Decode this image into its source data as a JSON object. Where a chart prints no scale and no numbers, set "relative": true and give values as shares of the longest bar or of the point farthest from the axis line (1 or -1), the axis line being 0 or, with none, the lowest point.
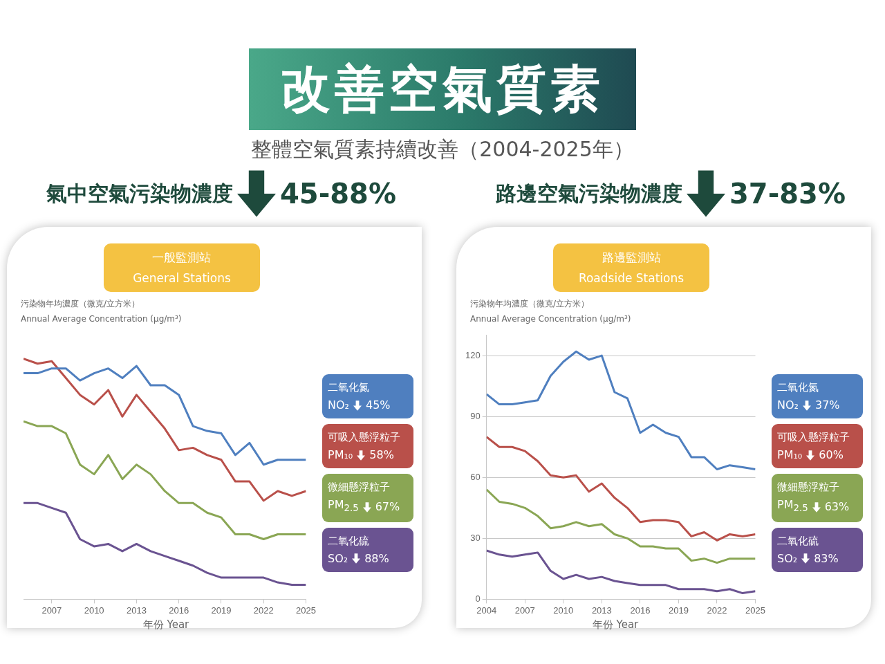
{
  "chart_data": [
    {
      "type": "line",
      "title": "一般監測站\nGeneral Stations",
      "subtitle": "氣中空氣污染物濃度 45-88%",
      "annotations": [
        "改善空氣質素",
        "整體空氣質素持續改善（2004-2025年）"
      ],
      "xlabel": "年份 Year",
      "ylabel": "污染物年均濃度（微克/立方米）\nAnnual Average Concentration (μg/m³)",
      "relative": true,
      "marker": "none",
      "x": [
        2005,
        2006,
        2007,
        2008,
        2009,
        2010,
        2011,
        2012,
        2013,
        2014,
        2015,
        2016,
        2017,
        2018,
        2019,
        2020,
        2021,
        2022,
        2023,
        2024,
        2025
      ],
      "xlim": [
        2005,
        2025
      ],
      "xticks": [
        2007,
        2010,
        2013,
        2016,
        2019,
        2022,
        2025
      ],
      "series": [
        {
          "name": "二氧化氮\nNO₂ 45%",
          "color": "#4f7fbf",
          "values": [
            0.94,
            0.94,
            0.96,
            0.96,
            0.91,
            0.94,
            0.96,
            0.92,
            0.97,
            0.89,
            0.89,
            0.85,
            0.72,
            0.7,
            0.69,
            0.6,
            0.65,
            0.56,
            0.58,
            0.58,
            0.58
          ]
        },
        {
          "name": "可吸入懸浮粒子\nPM₁₀ 58%",
          "color": "#b9504a",
          "values": [
            1,
            0.98,
            0.99,
            0.92,
            0.85,
            0.81,
            0.87,
            0.76,
            0.85,
            0.78,
            0.71,
            0.62,
            0.63,
            0.6,
            0.58,
            0.49,
            0.49,
            0.41,
            0.45,
            0.43,
            0.45
          ]
        },
        {
          "name": "微細懸浮粒子\nPM$_{2.5}$ 67%",
          "color": "#8aa654",
          "values": [
            0.74,
            0.72,
            0.72,
            0.69,
            0.56,
            0.52,
            0.6,
            0.5,
            0.56,
            0.52,
            0.45,
            0.4,
            0.4,
            0.36,
            0.34,
            0.27,
            0.27,
            0.25,
            0.27,
            0.27,
            0.27
          ]
        },
        {
          "name": "二氧化硫\nSO₂ 88%",
          "color": "#6a5391",
          "values": [
            0.4,
            0.4,
            0.38,
            0.36,
            0.25,
            0.22,
            0.23,
            0.2,
            0.23,
            0.2,
            0.18,
            0.16,
            0.14,
            0.11,
            0.09,
            0.09,
            0.09,
            0.09,
            0.07,
            0.06,
            0.06
          ]
        }
      ]
    },
    {
      "type": "line",
      "title": "路邊監測站\nRoadside Stations",
      "subtitle": "路邊空氣污染物濃度 37-83%",
      "xlabel": "年份 Year",
      "ylabel": "污染物年均濃度（微克/立方米）\nAnnual Average Concentration (μg/m³)",
      "marker": "none",
      "grid": "y",
      "x": [
        2004,
        2005,
        2006,
        2007,
        2008,
        2009,
        2010,
        2011,
        2012,
        2013,
        2014,
        2015,
        2016,
        2017,
        2018,
        2019,
        2020,
        2021,
        2022,
        2023,
        2024,
        2025
      ],
      "xlim": [
        2004,
        2025
      ],
      "xticks": [
        2004,
        2007,
        2010,
        2013,
        2016,
        2019,
        2022,
        2025
      ],
      "ylim": [
        0,
        130
      ],
      "yticks": [
        0,
        30,
        60,
        90,
        120
      ],
      "series": [
        {
          "name": "二氧化氮\nNO₂ 37%",
          "color": "#4f7fbf",
          "values": [
            101,
            96,
            96,
            97,
            98,
            110,
            117,
            122,
            118,
            120,
            102,
            99,
            82,
            86,
            82,
            80,
            70,
            70,
            64,
            66,
            65,
            64
          ]
        },
        {
          "name": "可吸入懸浮粒子\nPM₁₀ 60%",
          "color": "#b9504a",
          "values": [
            80,
            75,
            75,
            73,
            68,
            61,
            60,
            61,
            53,
            57,
            50,
            45,
            38,
            39,
            39,
            38,
            31,
            33,
            29,
            32,
            31,
            32
          ]
        },
        {
          "name": "微細懸浮粒子\nPM$_{2.5}$ 63%",
          "color": "#8aa654",
          "values": [
            54,
            48,
            47,
            45,
            41,
            35,
            36,
            38,
            36,
            37,
            32,
            30,
            26,
            26,
            25,
            25,
            19,
            20,
            18,
            20,
            20,
            20
          ]
        },
        {
          "name": "二氧化硫\nSO₂ 83%",
          "color": "#6a5391",
          "values": [
            24,
            22,
            21,
            22,
            23,
            14,
            10,
            12,
            10,
            11,
            9,
            8,
            7,
            7,
            7,
            5,
            5,
            5,
            4,
            5,
            3,
            4
          ]
        }
      ]
    }
  ]
}
